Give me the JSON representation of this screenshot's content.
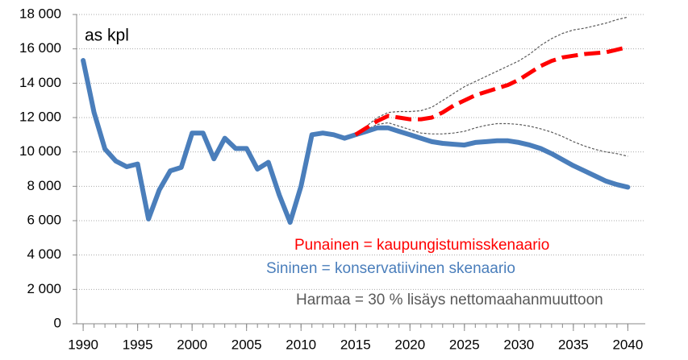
{
  "chart_data": {
    "type": "line",
    "annotations": [
      {
        "text": "as kpl",
        "color": "#000000"
      },
      {
        "text": "Punainen = kaupungistumisskenaario",
        "color": "#ff0000"
      },
      {
        "text": "Sininen = konservatiivinen skenaario",
        "color": "#4a7ebb"
      },
      {
        "text": "Harmaa = 30 % lisäys nettomaahanmuuttoon",
        "color": "#595959"
      }
    ],
    "x": [
      1990,
      1991,
      1992,
      1993,
      1994,
      1995,
      1996,
      1997,
      1998,
      1999,
      2000,
      2001,
      2002,
      2003,
      2004,
      2005,
      2006,
      2007,
      2008,
      2009,
      2010,
      2011,
      2012,
      2013,
      2014,
      2015,
      2016,
      2017,
      2018,
      2019,
      2020,
      2021,
      2022,
      2023,
      2024,
      2025,
      2026,
      2027,
      2028,
      2029,
      2030,
      2031,
      2032,
      2033,
      2034,
      2035,
      2036,
      2037,
      2038,
      2039,
      2040
    ],
    "series": [
      {
        "color": "#595959",
        "dashed": true,
        "width": 1.2,
        "values": [
          null,
          null,
          null,
          null,
          null,
          null,
          null,
          null,
          null,
          null,
          null,
          null,
          null,
          null,
          null,
          null,
          null,
          null,
          null,
          null,
          null,
          null,
          null,
          null,
          null,
          11000,
          11500,
          12000,
          12300,
          12350,
          12350,
          12400,
          12600,
          13000,
          13400,
          13800,
          14100,
          14400,
          14700,
          15000,
          15300,
          15700,
          16200,
          16600,
          16900,
          17100,
          17200,
          17350,
          17500,
          17700,
          17850
        ]
      },
      {
        "color": "#595959",
        "dashed": true,
        "width": 1.2,
        "values": [
          null,
          null,
          null,
          null,
          null,
          null,
          null,
          null,
          null,
          null,
          null,
          null,
          null,
          null,
          null,
          null,
          null,
          null,
          null,
          null,
          null,
          null,
          null,
          null,
          null,
          11000,
          11300,
          11600,
          11700,
          11500,
          11300,
          11100,
          11050,
          11050,
          11100,
          11200,
          11400,
          11550,
          11650,
          11650,
          11600,
          11500,
          11350,
          11150,
          10900,
          10600,
          10350,
          10150,
          10000,
          9900,
          9750
        ]
      },
      {
        "color": "#4a7ebb",
        "dashed": false,
        "width": 6,
        "values": [
          15330,
          12300,
          10170,
          9470,
          9140,
          9300,
          6100,
          7800,
          8900,
          9100,
          11100,
          11100,
          9600,
          10800,
          10200,
          10200,
          9000,
          9400,
          7500,
          5900,
          8000,
          11000,
          11100,
          11000,
          10800,
          11000,
          11200,
          11400,
          11400,
          11200,
          11000,
          10800,
          10600,
          10500,
          10450,
          10400,
          10550,
          10600,
          10650,
          10650,
          10550,
          10400,
          10200,
          9900,
          9550,
          9200,
          8900,
          8600,
          8300,
          8100,
          7950
        ]
      },
      {
        "color": "#ff0000",
        "dashed": true,
        "width": 5,
        "values": [
          null,
          null,
          null,
          null,
          null,
          null,
          null,
          null,
          null,
          null,
          null,
          null,
          null,
          null,
          null,
          null,
          null,
          null,
          null,
          null,
          null,
          null,
          null,
          null,
          null,
          11000,
          11400,
          11800,
          12100,
          12000,
          11900,
          11900,
          12000,
          12300,
          12700,
          13000,
          13300,
          13500,
          13700,
          13900,
          14200,
          14600,
          15000,
          15300,
          15500,
          15600,
          15700,
          15750,
          15800,
          15950,
          16100
        ]
      }
    ],
    "xlim": [
      1989.4,
      2041.6
    ],
    "xticks": [
      1990,
      1995,
      2000,
      2005,
      2010,
      2015,
      2020,
      2025,
      2030,
      2035,
      2040
    ],
    "ylim": [
      0,
      18000
    ],
    "yticks": [
      0,
      {
        "value": 2000,
        "label": "2 000"
      },
      {
        "value": 4000,
        "label": "4 000"
      },
      {
        "value": 6000,
        "label": "6 000"
      },
      {
        "value": 8000,
        "label": "8 000"
      },
      {
        "value": 10000,
        "label": "10 000"
      },
      {
        "value": 12000,
        "label": "12 000"
      },
      {
        "value": 14000,
        "label": "14 000"
      },
      {
        "value": 16000,
        "label": "16 000"
      },
      {
        "value": 18000,
        "label": "18 000"
      }
    ],
    "grid": true
  }
}
